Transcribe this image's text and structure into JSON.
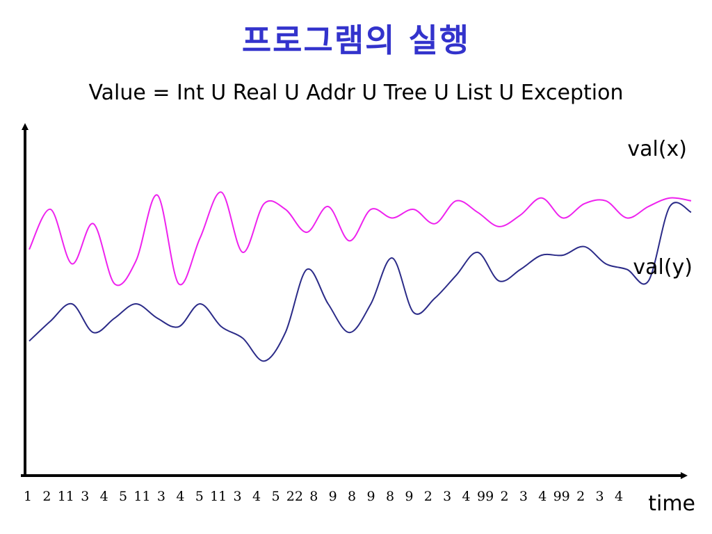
{
  "title": "프로그램의 실행",
  "value_definition": "Value = Int U Real U Addr U Tree U List U Exception",
  "chart_data": {
    "type": "line",
    "xlabel": "time",
    "ylabel": "",
    "x": [
      "1",
      "2",
      "11",
      "3",
      "4",
      "5",
      "11",
      "3",
      "4",
      "5",
      "11",
      "3",
      "4",
      "5",
      "22",
      "8",
      "9",
      "8",
      "9",
      "8",
      "9",
      "2",
      "3",
      "4",
      "99",
      "2",
      "3",
      "4",
      "99",
      "2",
      "3",
      "4"
    ],
    "series": [
      {
        "name": "val(x)",
        "color": "#ee22ee",
        "values": [
          0.79,
          0.93,
          0.74,
          0.88,
          0.67,
          0.75,
          0.98,
          0.67,
          0.83,
          0.99,
          0.78,
          0.95,
          0.93,
          0.85,
          0.94,
          0.82,
          0.93,
          0.9,
          0.93,
          0.88,
          0.96,
          0.92,
          0.87,
          0.91,
          0.97,
          0.9,
          0.95,
          0.96,
          0.9,
          0.94,
          0.97,
          0.96
        ]
      },
      {
        "name": "val(y)",
        "color": "#2b2b88",
        "values": [
          0.47,
          0.54,
          0.6,
          0.5,
          0.55,
          0.6,
          0.55,
          0.52,
          0.6,
          0.52,
          0.48,
          0.4,
          0.5,
          0.72,
          0.6,
          0.5,
          0.6,
          0.76,
          0.57,
          0.62,
          0.7,
          0.78,
          0.68,
          0.72,
          0.77,
          0.77,
          0.8,
          0.74,
          0.72,
          0.68,
          0.94,
          0.92
        ]
      }
    ],
    "ylim": [
      0,
      1.2
    ],
    "grid": false,
    "legend": "inline-right"
  }
}
